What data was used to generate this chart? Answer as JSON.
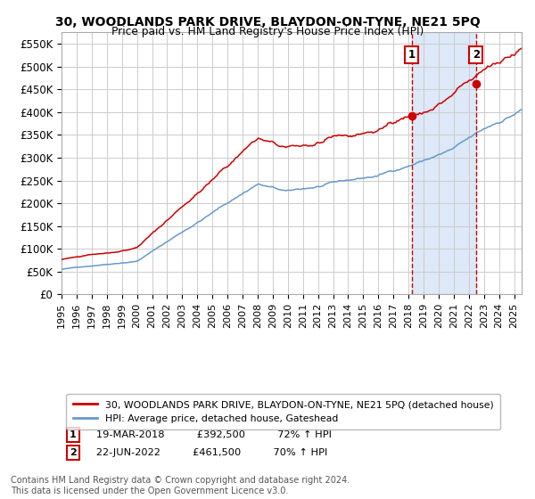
{
  "title": "30, WOODLANDS PARK DRIVE, BLAYDON-ON-TYNE, NE21 5PQ",
  "subtitle": "Price paid vs. HM Land Registry's House Price Index (HPI)",
  "ylabel_ticks": [
    "£0",
    "£50K",
    "£100K",
    "£150K",
    "£200K",
    "£250K",
    "£300K",
    "£350K",
    "£400K",
    "£450K",
    "£500K",
    "£550K"
  ],
  "ytick_vals": [
    0,
    50000,
    100000,
    150000,
    200000,
    250000,
    300000,
    350000,
    400000,
    450000,
    500000,
    550000
  ],
  "ylim": [
    0,
    575000
  ],
  "xlim_start": 1995.0,
  "xlim_end": 2025.5,
  "sale1_x": 2018.21,
  "sale1_y": 392500,
  "sale1_label": "1",
  "sale2_x": 2022.47,
  "sale2_y": 461500,
  "sale2_label": "2",
  "red_line_color": "#cc0000",
  "blue_line_color": "#6699cc",
  "annotation_box_color": "#cc0000",
  "vline_color": "#cc0000",
  "shaded_color": "#dde8f8",
  "legend1_text": "30, WOODLANDS PARK DRIVE, BLAYDON-ON-TYNE, NE21 5PQ (detached house)",
  "legend2_text": "HPI: Average price, detached house, Gateshead",
  "note1_label": "1",
  "note1_date": "19-MAR-2018",
  "note1_price": "£392,500",
  "note1_hpi": "72% ↑ HPI",
  "note2_label": "2",
  "note2_date": "22-JUN-2022",
  "note2_price": "£461,500",
  "note2_hpi": "70% ↑ HPI",
  "footer": "Contains HM Land Registry data © Crown copyright and database right 2024.\nThis data is licensed under the Open Government Licence v3.0.",
  "background_color": "#ffffff",
  "grid_color": "#cccccc"
}
